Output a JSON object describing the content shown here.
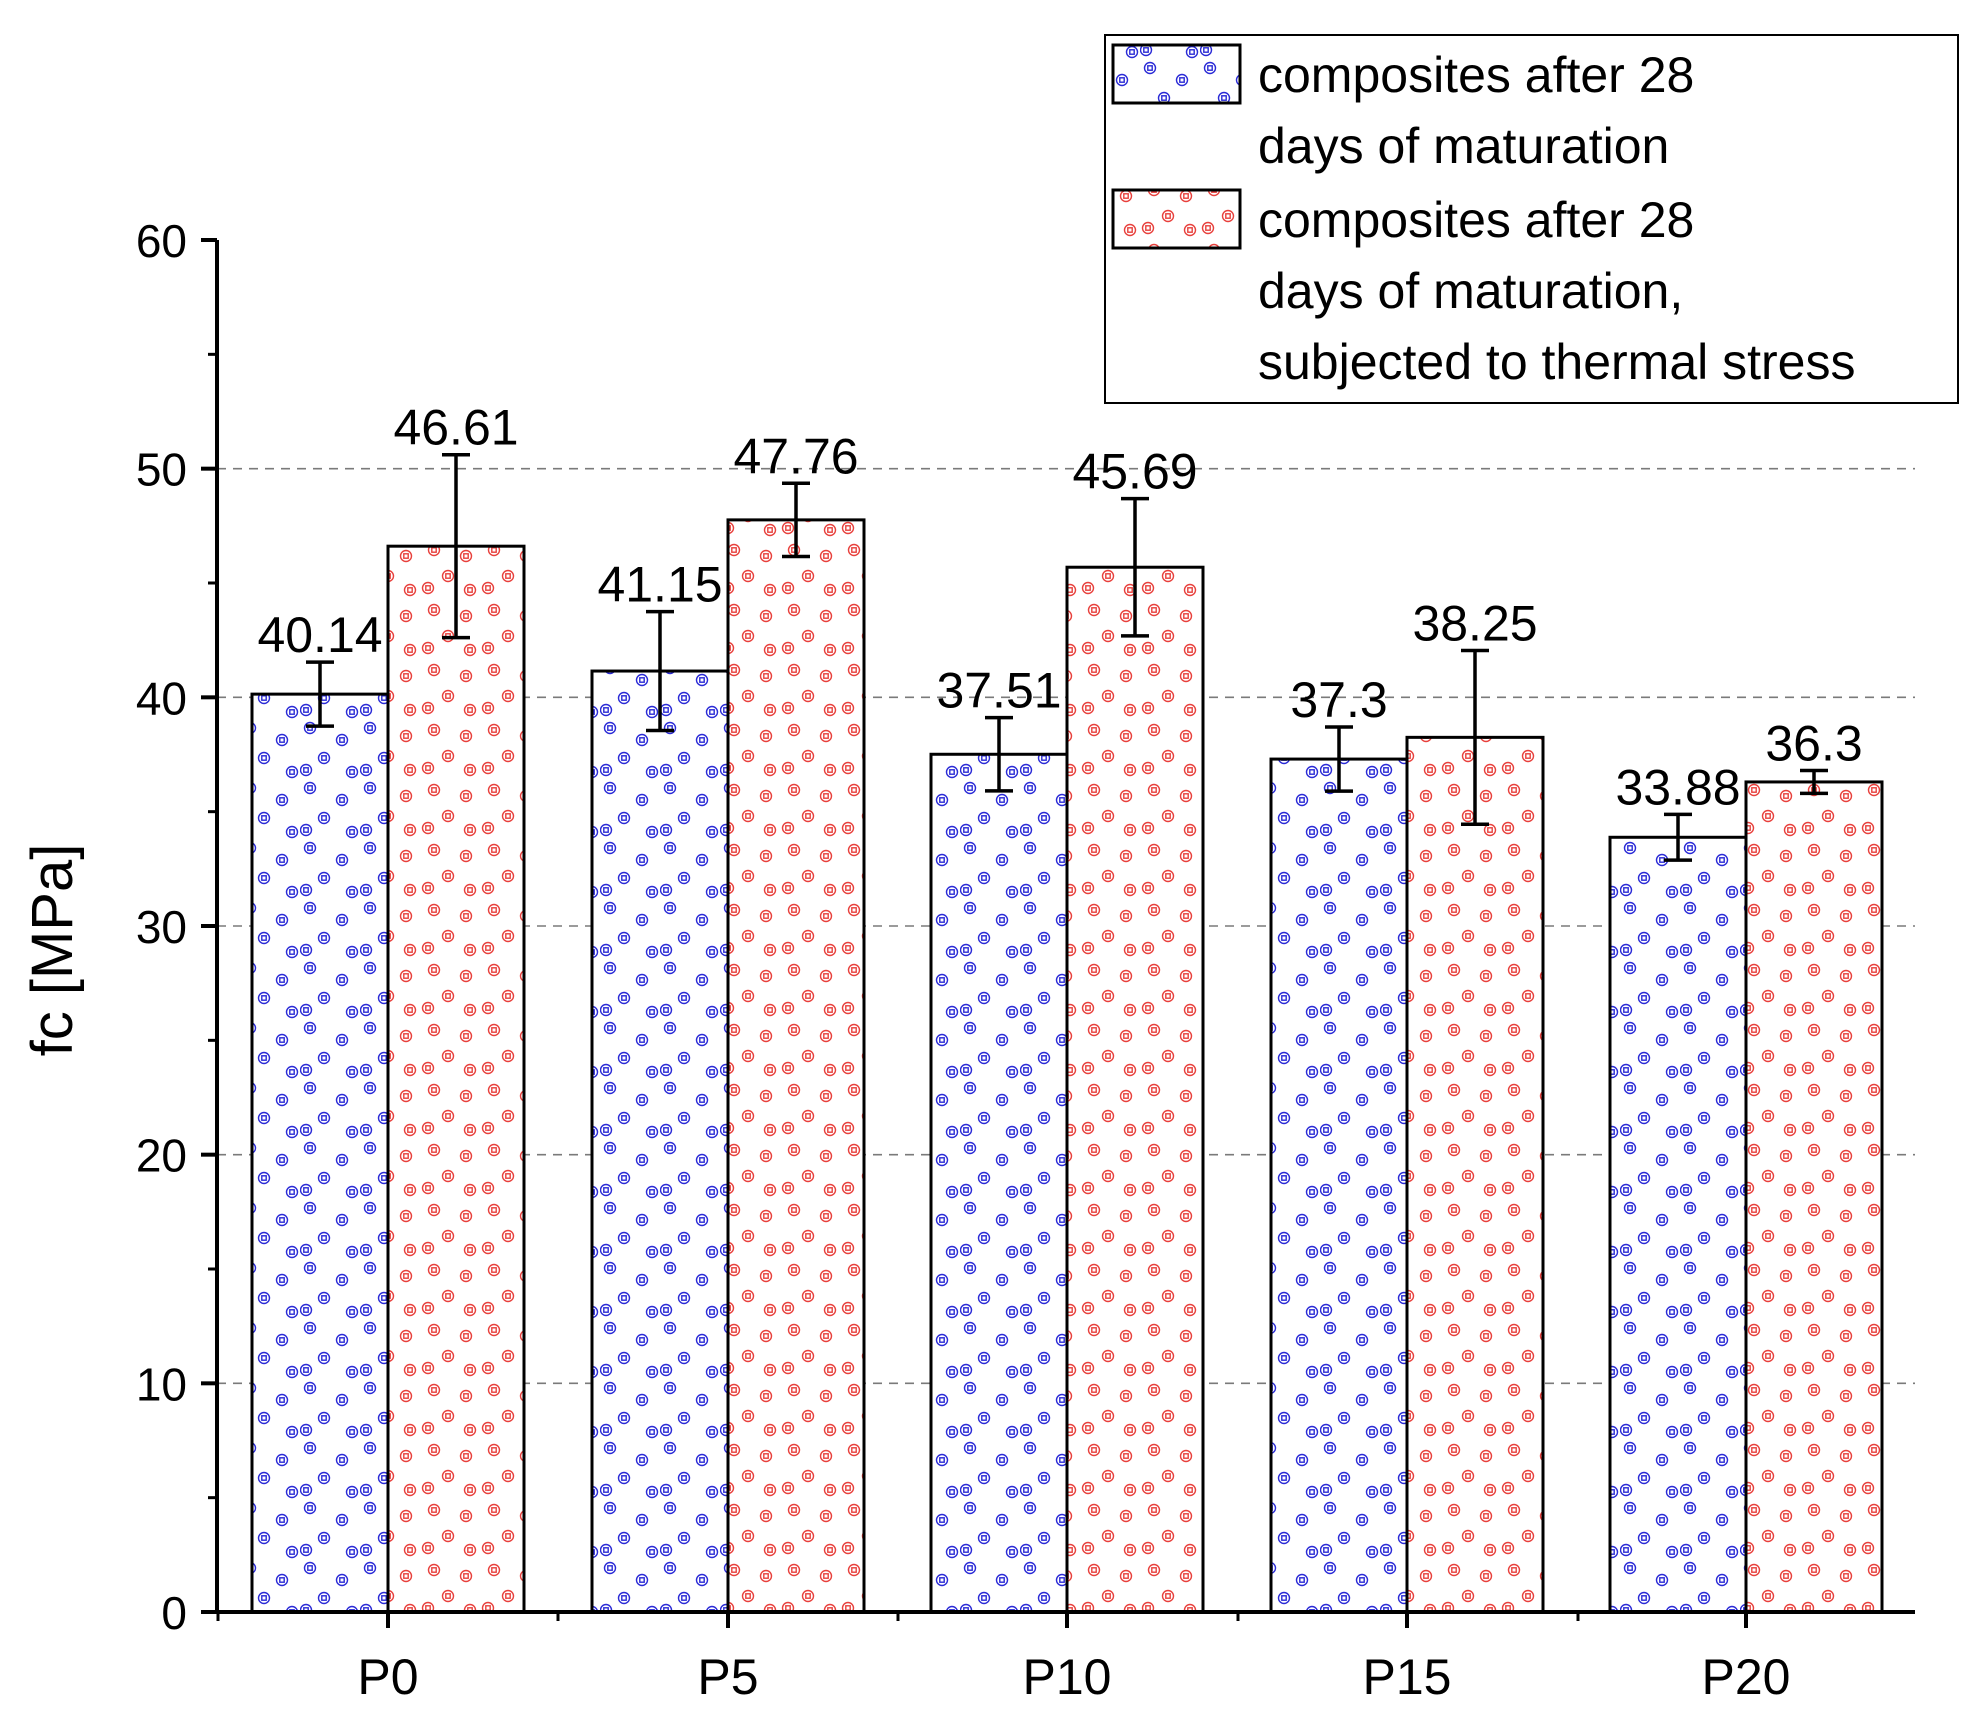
{
  "chart_data": {
    "type": "bar",
    "title": "",
    "xlabel": "",
    "ylabel": "fc [MPa]",
    "ylim": [
      0,
      60
    ],
    "yticks": [
      0,
      10,
      20,
      30,
      40,
      50,
      60
    ],
    "grid": true,
    "legend_position": "top-right",
    "categories": [
      "P0",
      "P5",
      "P10",
      "P15",
      "P20"
    ],
    "series": [
      {
        "name": "composites after 28 days of maturation",
        "legend_lines": [
          "composites after 28",
          "days of maturation"
        ],
        "pattern_color": "#2a2ad6",
        "values": [
          40.14,
          41.15,
          37.51,
          37.3,
          33.88
        ],
        "labels": [
          "40.14",
          "41.15",
          "37.51",
          "37.3",
          "33.88"
        ],
        "errors": [
          1.4,
          2.6,
          1.6,
          1.4,
          1.0
        ]
      },
      {
        "name": "composites after 28 days of maturation, subjected to thermal stress",
        "legend_lines": [
          "composites after 28",
          "days of maturation,",
          "subjected to thermal stress"
        ],
        "pattern_color": "#e8403c",
        "values": [
          46.61,
          47.76,
          45.69,
          38.25,
          36.3
        ],
        "labels": [
          "46.61",
          "47.76",
          "45.69",
          "38.25",
          "36.3"
        ],
        "errors": [
          4.0,
          1.6,
          3.0,
          3.8,
          0.5
        ]
      }
    ]
  }
}
